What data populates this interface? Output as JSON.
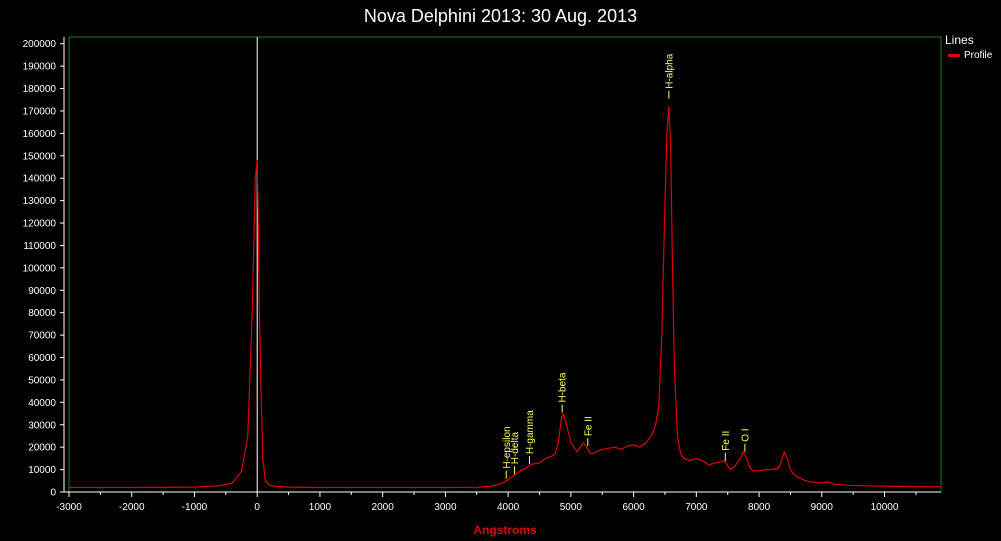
{
  "chart_data": {
    "type": "line",
    "title": "Nova Delphini 2013: 30 Aug. 2013",
    "xlabel": "Angstroms",
    "ylabel": "",
    "xlim": [
      -3000,
      10900
    ],
    "ylim": [
      0,
      203000
    ],
    "xticks": [
      -3000,
      -2000,
      -1000,
      0,
      1000,
      2000,
      3000,
      4000,
      5000,
      6000,
      7000,
      8000,
      9000,
      10000
    ],
    "yticks": [
      0,
      10000,
      20000,
      30000,
      40000,
      50000,
      60000,
      70000,
      80000,
      90000,
      100000,
      110000,
      120000,
      130000,
      140000,
      150000,
      160000,
      170000,
      180000,
      190000,
      200000
    ],
    "grid": false,
    "legend": {
      "title": "Lines",
      "position": "top-right"
    },
    "series": [
      {
        "name": "Profile",
        "color": "#e00000",
        "x": [
          -3000,
          -2000,
          -1000,
          -600,
          -400,
          -250,
          -150,
          -80,
          -30,
          0,
          15,
          35,
          60,
          90,
          130,
          200,
          300,
          500,
          1000,
          2000,
          3000,
          3500,
          3700,
          3800,
          3900,
          3950,
          4000,
          4050,
          4100,
          4150,
          4200,
          4250,
          4300,
          4350,
          4400,
          4500,
          4600,
          4700,
          4750,
          4800,
          4850,
          4880,
          4950,
          5000,
          5100,
          5150,
          5200,
          5250,
          5300,
          5350,
          5400,
          5500,
          5600,
          5700,
          5800,
          5900,
          6000,
          6100,
          6200,
          6300,
          6350,
          6400,
          6450,
          6500,
          6530,
          6563,
          6590,
          6620,
          6650,
          6700,
          6750,
          6800,
          6900,
          7000,
          7100,
          7200,
          7300,
          7400,
          7450,
          7500,
          7550,
          7600,
          7650,
          7700,
          7750,
          7800,
          7850,
          7900,
          8000,
          8100,
          8200,
          8300,
          8350,
          8400,
          8450,
          8500,
          8550,
          8600,
          8700,
          8800,
          9000,
          9100,
          9200,
          9400,
          9600,
          9800,
          10000,
          10500,
          10900
        ],
        "values": [
          2000,
          2000,
          2200,
          2800,
          4000,
          9000,
          25000,
          80000,
          140000,
          148000,
          125000,
          80000,
          45000,
          15000,
          5000,
          3000,
          2500,
          2200,
          2000,
          2000,
          2000,
          2100,
          2500,
          3000,
          4000,
          4500,
          5500,
          6500,
          7500,
          8500,
          9500,
          10000,
          11000,
          12000,
          12500,
          13000,
          15000,
          16000,
          17000,
          22000,
          33000,
          35000,
          28000,
          22000,
          18000,
          20000,
          22000,
          20000,
          17500,
          17000,
          18000,
          19000,
          19500,
          20000,
          19000,
          20500,
          21000,
          20000,
          22000,
          26000,
          30000,
          38000,
          70000,
          130000,
          160000,
          172000,
          155000,
          100000,
          55000,
          25000,
          17000,
          15000,
          14000,
          15000,
          14000,
          12000,
          13000,
          13500,
          14000,
          11500,
          10000,
          11000,
          13000,
          15000,
          18000,
          15000,
          11000,
          9500,
          9500,
          10000,
          10000,
          10500,
          13000,
          18000,
          15000,
          10000,
          8000,
          7000,
          5500,
          4500,
          4000,
          4500,
          3500,
          3000,
          2800,
          2700,
          2600,
          2400,
          2300
        ]
      }
    ],
    "vertical_line": {
      "x": 0,
      "color": "#ffffff"
    },
    "annotations": [
      {
        "text": "H-epsilon",
        "x": 3970,
        "y": 5500
      },
      {
        "text": "H-delta",
        "x": 4102,
        "y": 7500
      },
      {
        "text": "H-gamma",
        "x": 4340,
        "y": 12000
      },
      {
        "text": "H-beta",
        "x": 4861,
        "y": 35000
      },
      {
        "text": "Fe II",
        "x": 5270,
        "y": 20000
      },
      {
        "text": "H-alpha",
        "x": 6563,
        "y": 175000
      },
      {
        "text": "Fe II",
        "x": 7462,
        "y": 13500
      },
      {
        "text": "O I",
        "x": 7774,
        "y": 17500
      }
    ]
  }
}
